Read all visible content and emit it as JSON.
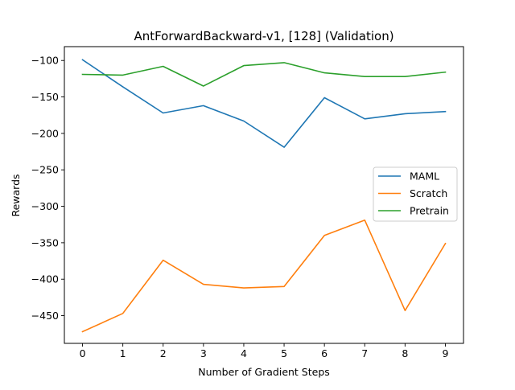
{
  "chart_data": {
    "type": "line",
    "title": "AntForwardBackward-v1, [128] (Validation)",
    "xlabel": "Number of Gradient Steps",
    "ylabel": "Rewards",
    "x": [
      0,
      1,
      2,
      3,
      4,
      5,
      6,
      7,
      8,
      9
    ],
    "xlim": [
      -0.45,
      9.45
    ],
    "ylim": [
      -488,
      -81
    ],
    "xticks": [
      0,
      1,
      2,
      3,
      4,
      5,
      6,
      7,
      8,
      9
    ],
    "yticks": [
      -100,
      -150,
      -200,
      -250,
      -300,
      -350,
      -400,
      -450
    ],
    "ytick_labels": [
      "−100",
      "−150",
      "−200",
      "−250",
      "−300",
      "−350",
      "−400",
      "−450"
    ],
    "grid": false,
    "legend_position": "center-right",
    "series": [
      {
        "name": "MAML",
        "color": "#1f77b4",
        "values": [
          -99,
          -136,
          -172,
          -162,
          -183,
          -219,
          -151,
          -180,
          -173,
          -170
        ]
      },
      {
        "name": "Scratch",
        "color": "#ff7f0e",
        "values": [
          -472,
          -447,
          -374,
          -407,
          -412,
          -410,
          -340,
          -319,
          -443,
          -351
        ]
      },
      {
        "name": "Pretrain",
        "color": "#2ca02c",
        "values": [
          -119,
          -120,
          -108,
          -135,
          -107,
          -103,
          -117,
          -122,
          -122,
          -116
        ]
      }
    ]
  }
}
